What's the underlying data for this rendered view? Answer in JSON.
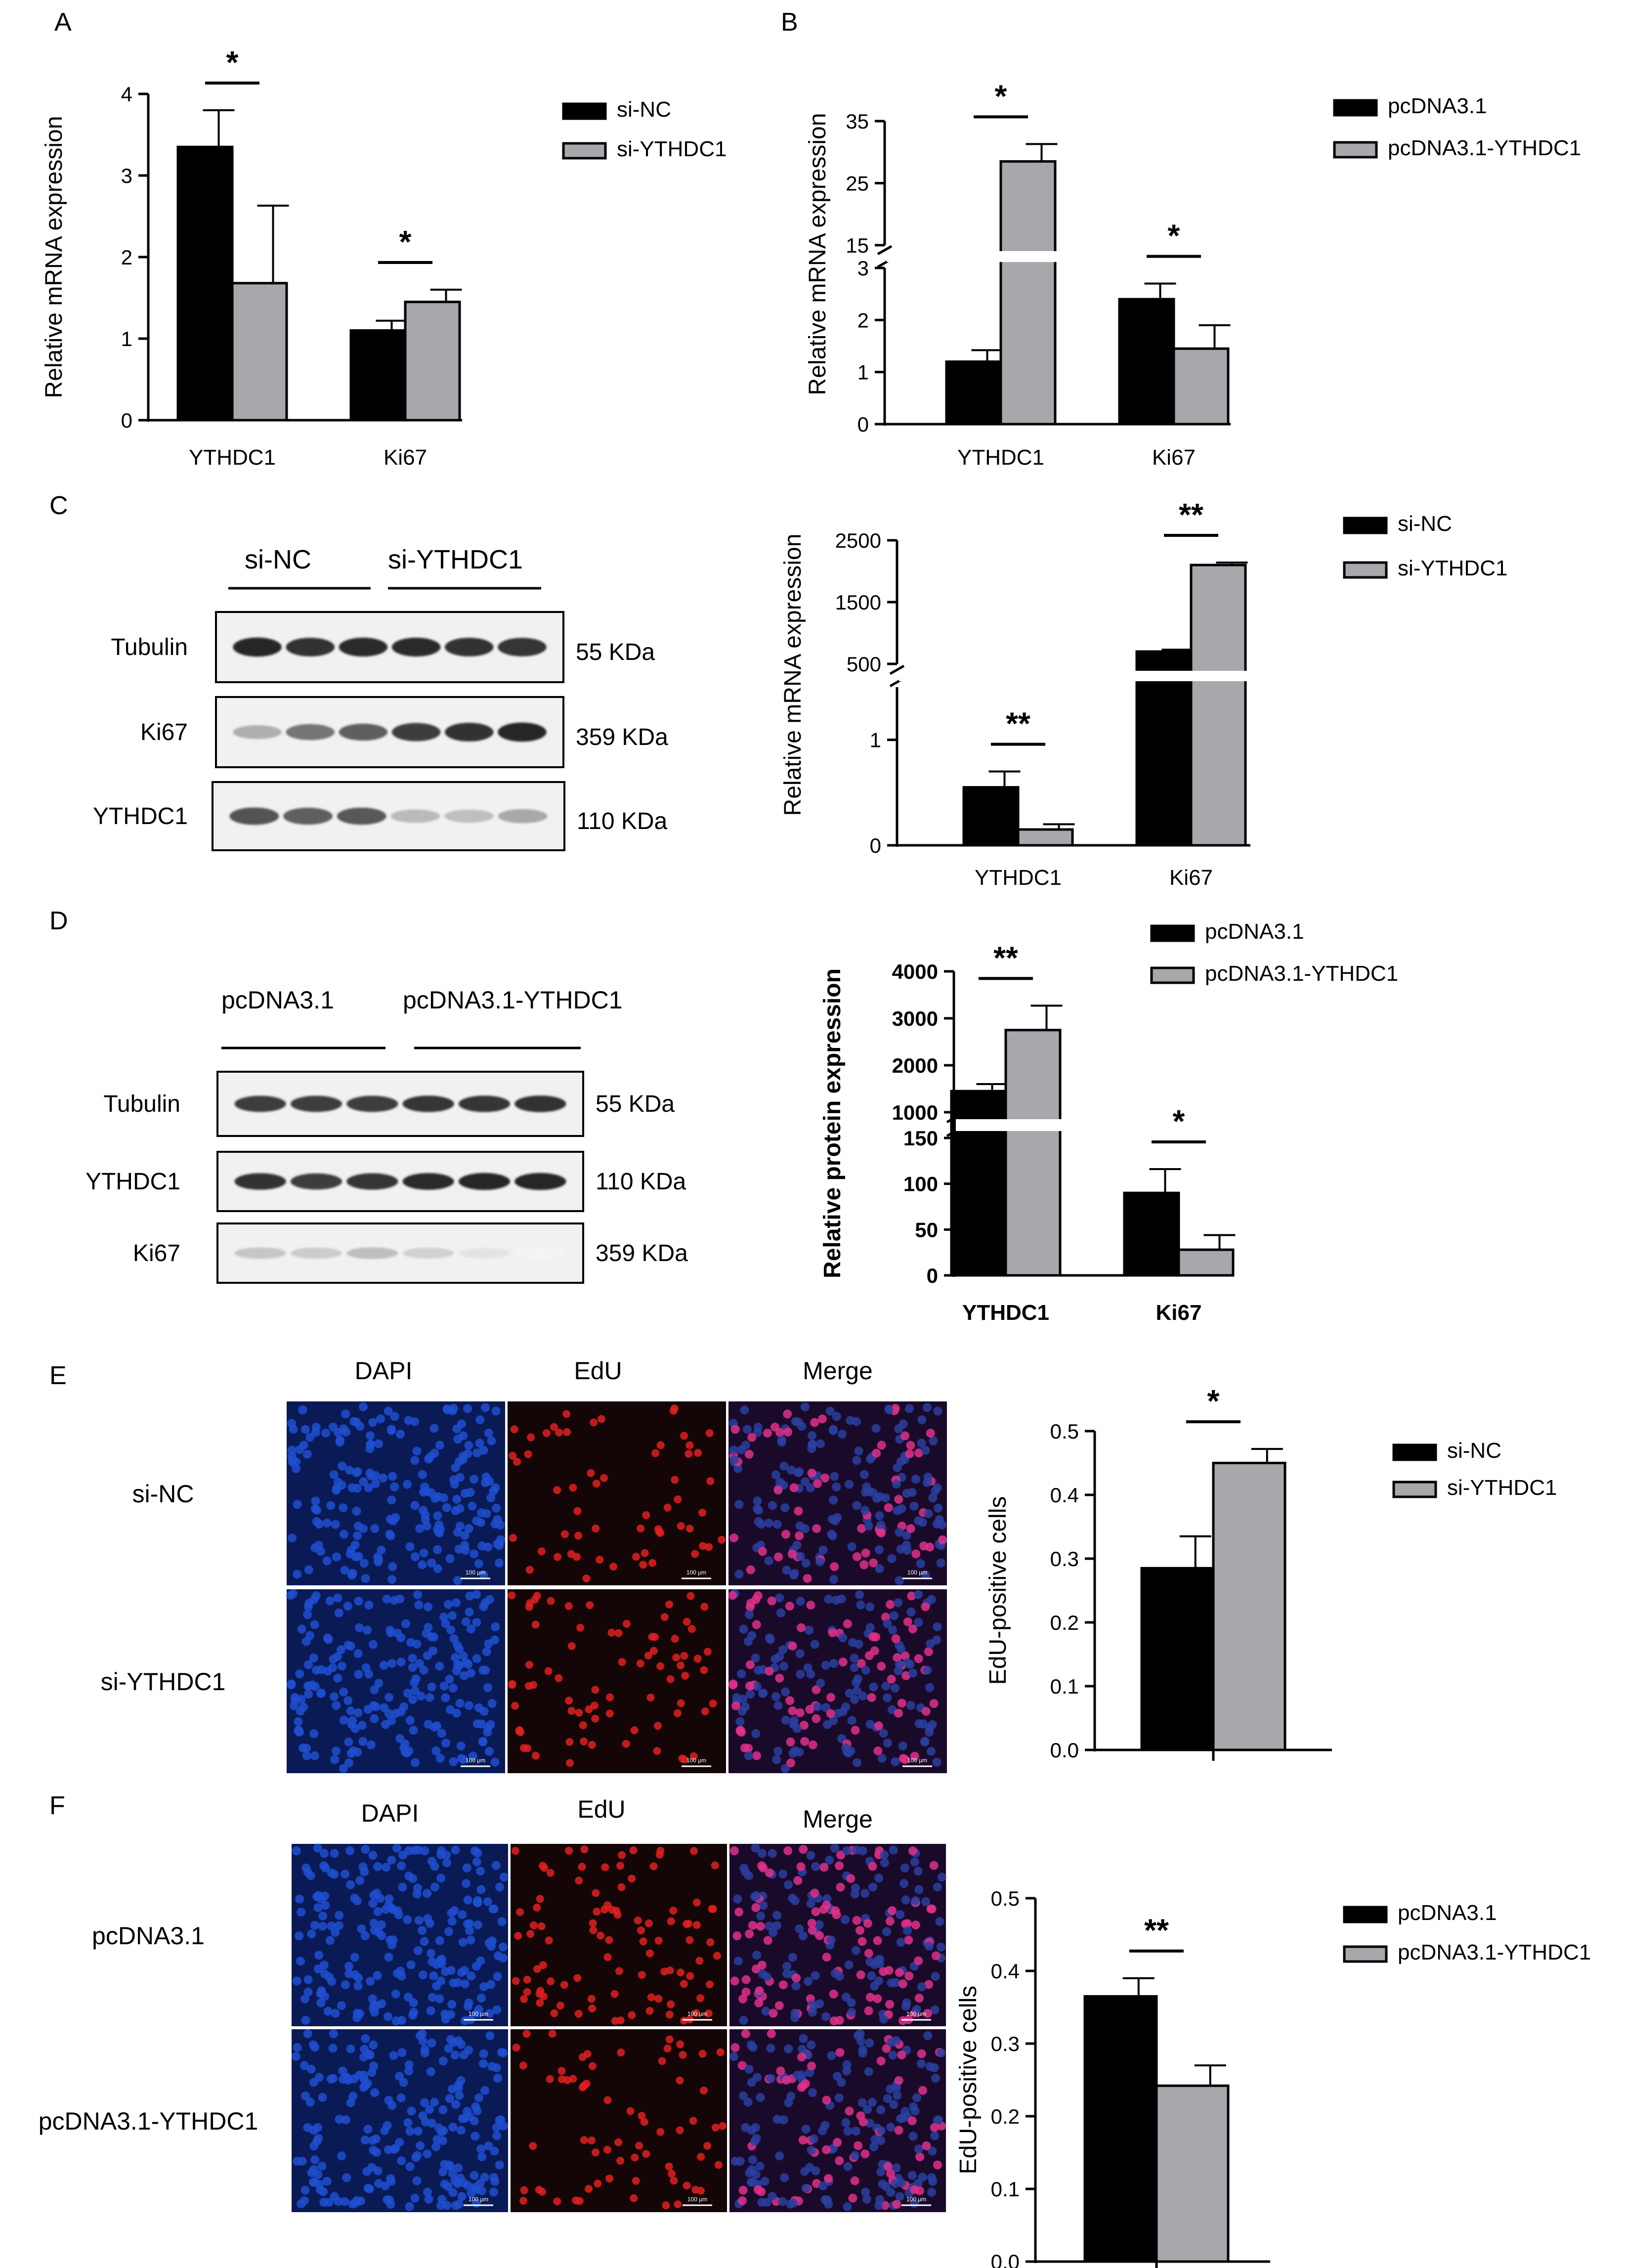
{
  "panels": {
    "A": "A",
    "B": "B",
    "C": "C",
    "D": "D",
    "E": "E",
    "F": "F"
  },
  "colors": {
    "black_bar": "#000000",
    "gray_bar": "#a8a8ac",
    "dapi": "#1e4fd0",
    "edu": "#e02020",
    "merge_nuc": "#e0308a",
    "panel_bg": "#0c1230"
  },
  "westernC": {
    "groups": [
      "si-NC",
      "si-YTHDC1"
    ],
    "rows": [
      {
        "label": "Tubulin",
        "kda": "55 KDa",
        "ints": [
          0.95,
          0.9,
          0.92,
          0.92,
          0.9,
          0.88
        ]
      },
      {
        "label": "Ki67",
        "kda": "359 KDa",
        "ints": [
          0.35,
          0.6,
          0.7,
          0.85,
          0.9,
          0.95
        ]
      },
      {
        "label": "YTHDC1",
        "kda": "110 KDa",
        "ints": [
          0.75,
          0.7,
          0.72,
          0.3,
          0.28,
          0.38
        ]
      }
    ]
  },
  "westernD": {
    "groups": [
      "pcDNA3.1",
      "pcDNA3.1-YTHDC1"
    ],
    "rows": [
      {
        "label": "Tubulin",
        "kda": "55 KDa",
        "ints": [
          0.85,
          0.85,
          0.85,
          0.88,
          0.88,
          0.9
        ]
      },
      {
        "label": "YTHDC1",
        "kda": "110 KDa",
        "ints": [
          0.9,
          0.85,
          0.88,
          0.92,
          0.95,
          0.95
        ]
      },
      {
        "label": "Ki67",
        "kda": "359 KDa",
        "ints": [
          0.25,
          0.22,
          0.28,
          0.2,
          0.12,
          0.05
        ]
      }
    ]
  },
  "microscopy": {
    "columns": [
      "DAPI",
      "EdU",
      "Merge"
    ],
    "scale_label": "100 μm",
    "E_rows": [
      "si-NC",
      "si-YTHDC1"
    ],
    "F_rows": [
      "pcDNA3.1",
      "pcDNA3.1-YTHDC1"
    ]
  },
  "chart_data": [
    {
      "panel": "A",
      "type": "bar",
      "categories": [
        "YTHDC1",
        "Ki67"
      ],
      "series": [
        {
          "name": "si-NC",
          "values": [
            3.35,
            1.1
          ],
          "errors": [
            0.45,
            0.12
          ]
        },
        {
          "name": "si-YTHDC1",
          "values": [
            1.68,
            1.45
          ],
          "errors": [
            0.95,
            0.15
          ]
        }
      ],
      "ylabel": "Relative mRNA expression",
      "ylim": [
        0,
        4
      ],
      "yticks": [
        "0",
        "1",
        "2",
        "3",
        "4"
      ],
      "significance": [
        "*",
        "*"
      ],
      "legend": "top-right"
    },
    {
      "panel": "B",
      "type": "bar",
      "categories": [
        "YTHDC1",
        "Ki67"
      ],
      "series": [
        {
          "name": "pcDNA3.1",
          "values": [
            1.2,
            2.4
          ],
          "errors": [
            0.22,
            0.3
          ]
        },
        {
          "name": "pcDNA3.1-YTHDC1",
          "values": [
            28.5,
            1.45
          ],
          "errors": [
            2.8,
            0.45
          ]
        }
      ],
      "ylabel": "Relative mRNA expression",
      "axis_break": [
        3,
        15
      ],
      "yticks": [
        "0",
        "1",
        "2",
        "3",
        "15",
        "25",
        "35"
      ],
      "significance": [
        "*",
        "*"
      ],
      "legend": "top-right"
    },
    {
      "panel": "C",
      "type": "bar",
      "categories": [
        "YTHDC1",
        "Ki67"
      ],
      "series": [
        {
          "name": "si-NC",
          "values": [
            0.55,
            700
          ],
          "errors": [
            0.15,
            30
          ]
        },
        {
          "name": "si-YTHDC1",
          "values": [
            0.15,
            2100
          ],
          "errors": [
            0.05,
            40
          ]
        }
      ],
      "ylabel": "Relative mRNA expression",
      "axis_break": [
        1.5,
        500
      ],
      "yticks": [
        "0",
        "1",
        "500",
        "1500",
        "2500"
      ],
      "significance": [
        "**",
        "**"
      ],
      "legend": "top-right"
    },
    {
      "panel": "D",
      "type": "bar",
      "categories": [
        "YTHDC1",
        "Ki67"
      ],
      "series": [
        {
          "name": "pcDNA3.1",
          "values": [
            1450,
            90
          ],
          "errors": [
            150,
            26
          ]
        },
        {
          "name": "pcDNA3.1-YTHDC1",
          "values": [
            2750,
            28
          ],
          "errors": [
            520,
            16
          ]
        }
      ],
      "ylabel": "Relative protein expression",
      "axis_break": [
        150,
        1000
      ],
      "yticks": [
        "0",
        "50",
        "100",
        "150",
        "1000",
        "2000",
        "3000",
        "4000"
      ],
      "significance": [
        "**",
        "*"
      ],
      "legend": "top-right"
    },
    {
      "panel": "E",
      "type": "bar",
      "categories": [
        ""
      ],
      "series": [
        {
          "name": "si-NC",
          "values": [
            0.285
          ],
          "errors": [
            0.05
          ]
        },
        {
          "name": "si-YTHDC1",
          "values": [
            0.45
          ],
          "errors": [
            0.022
          ]
        }
      ],
      "ylabel": "EdU-positive cells",
      "ylim": [
        0,
        0.5
      ],
      "yticks": [
        "0.0",
        "0.1",
        "0.2",
        "0.3",
        "0.4",
        "0.5"
      ],
      "significance": [
        "*"
      ],
      "legend": "top-right"
    },
    {
      "panel": "F",
      "type": "bar",
      "categories": [
        ""
      ],
      "series": [
        {
          "name": "pcDNA3.1",
          "values": [
            0.365
          ],
          "errors": [
            0.025
          ]
        },
        {
          "name": "pcDNA3.1-YTHDC1",
          "values": [
            0.242
          ],
          "errors": [
            0.028
          ]
        }
      ],
      "ylabel": "EdU-positive cells",
      "ylim": [
        0,
        0.5
      ],
      "yticks": [
        "0.0",
        "0.1",
        "0.2",
        "0.3",
        "0.4",
        "0.5"
      ],
      "significance": [
        "**"
      ],
      "legend": "top-right"
    }
  ]
}
